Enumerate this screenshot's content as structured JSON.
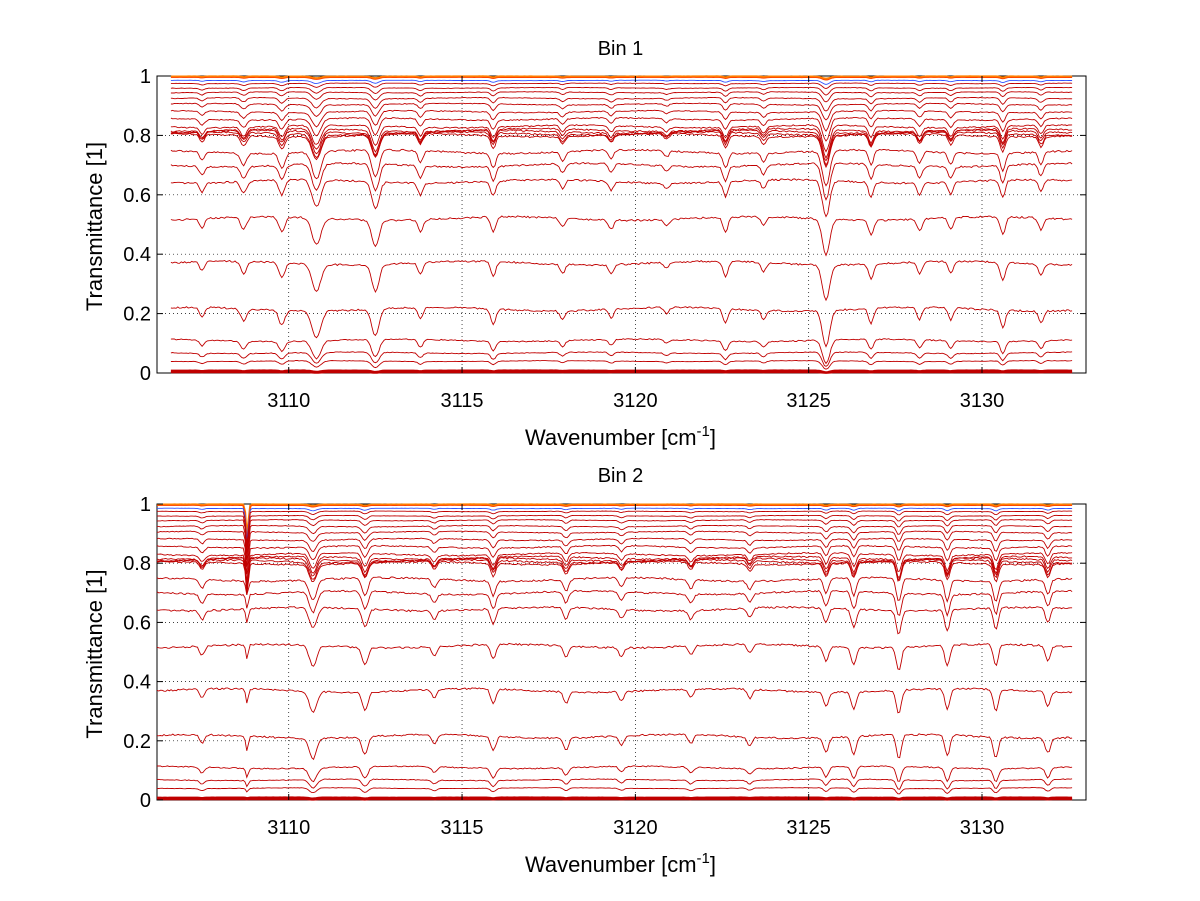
{
  "chart_data": [
    {
      "type": "line",
      "title": "Bin 1",
      "xlabel": "Wavenumber [cm",
      "xlabel_sup": "-1",
      "xlabel_end": "]",
      "ylabel": "Transmittance [1]",
      "xlim": [
        3106.2,
        3133.0
      ],
      "ylim": [
        0,
        1
      ],
      "xticks": [
        3110,
        3115,
        3120,
        3125,
        3130
      ],
      "xtick_labels": [
        "3110",
        "3115",
        "3120",
        "3125",
        "3130"
      ],
      "yticks": [
        0,
        0.2,
        0.4,
        0.6,
        0.8,
        1
      ],
      "ytick_labels": [
        "0",
        "0.2",
        "0.4",
        "0.6",
        "0.8",
        "1"
      ],
      "grid": true,
      "line_color": "#c00000",
      "top_colors": [
        "#ff7f00",
        "#ff4000",
        "#3050ff"
      ],
      "series_baselines": [
        0.998,
        0.995,
        0.985,
        0.975,
        0.96,
        0.945,
        0.925,
        0.905,
        0.88,
        0.855,
        0.83,
        0.818,
        0.812,
        0.806,
        0.8,
        0.745,
        0.7,
        0.645,
        0.52,
        0.37,
        0.215,
        0.11,
        0.068,
        0.04,
        0.008,
        0.003
      ],
      "absorption_lines": [
        {
          "x": 3107.5,
          "depth": 0.03,
          "width": 0.1
        },
        {
          "x": 3108.7,
          "depth": 0.04,
          "width": 0.12
        },
        {
          "x": 3109.8,
          "depth": 0.05,
          "width": 0.12
        },
        {
          "x": 3110.8,
          "depth": 0.09,
          "width": 0.18
        },
        {
          "x": 3112.5,
          "depth": 0.09,
          "width": 0.15
        },
        {
          "x": 3113.8,
          "depth": 0.04,
          "width": 0.1
        },
        {
          "x": 3115.9,
          "depth": 0.05,
          "width": 0.1
        },
        {
          "x": 3117.9,
          "depth": 0.03,
          "width": 0.1
        },
        {
          "x": 3119.3,
          "depth": 0.03,
          "width": 0.1
        },
        {
          "x": 3120.9,
          "depth": 0.02,
          "width": 0.1
        },
        {
          "x": 3122.6,
          "depth": 0.05,
          "width": 0.1
        },
        {
          "x": 3123.7,
          "depth": 0.03,
          "width": 0.1
        },
        {
          "x": 3125.5,
          "depth": 0.12,
          "width": 0.15
        },
        {
          "x": 3126.8,
          "depth": 0.05,
          "width": 0.1
        },
        {
          "x": 3128.2,
          "depth": 0.04,
          "width": 0.1
        },
        {
          "x": 3129.1,
          "depth": 0.04,
          "width": 0.1
        },
        {
          "x": 3130.6,
          "depth": 0.06,
          "width": 0.1
        },
        {
          "x": 3131.7,
          "depth": 0.04,
          "width": 0.1
        }
      ],
      "x_start": 3106.6,
      "x_end": 3132.6
    },
    {
      "type": "line",
      "title": "Bin 2",
      "xlabel": "Wavenumber [cm",
      "xlabel_sup": "-1",
      "xlabel_end": "]",
      "ylabel": "Transmittance [1]",
      "xlim": [
        3106.2,
        3133.0
      ],
      "ylim": [
        0,
        1
      ],
      "xticks": [
        3110,
        3115,
        3120,
        3125,
        3130
      ],
      "xtick_labels": [
        "3110",
        "3115",
        "3120",
        "3125",
        "3130"
      ],
      "yticks": [
        0,
        0.2,
        0.4,
        0.6,
        0.8,
        1
      ],
      "ytick_labels": [
        "0",
        "0.2",
        "0.4",
        "0.6",
        "0.8",
        "1"
      ],
      "grid": true,
      "line_color": "#c00000",
      "top_colors": [
        "#ff7f00",
        "#ff4000",
        "#3050ff"
      ],
      "series_baselines": [
        0.998,
        0.995,
        0.985,
        0.975,
        0.96,
        0.945,
        0.925,
        0.905,
        0.88,
        0.855,
        0.83,
        0.818,
        0.812,
        0.806,
        0.8,
        0.745,
        0.7,
        0.645,
        0.52,
        0.37,
        0.215,
        0.11,
        0.068,
        0.04,
        0.008,
        0.003
      ],
      "absorption_lines": [
        {
          "x": 3107.5,
          "depth": 0.03,
          "width": 0.1
        },
        {
          "x": 3108.8,
          "depth": 0.05,
          "width": 0.05,
          "sharp_top": true
        },
        {
          "x": 3110.7,
          "depth": 0.07,
          "width": 0.15
        },
        {
          "x": 3112.2,
          "depth": 0.06,
          "width": 0.12
        },
        {
          "x": 3114.2,
          "depth": 0.03,
          "width": 0.1
        },
        {
          "x": 3115.9,
          "depth": 0.05,
          "width": 0.1
        },
        {
          "x": 3118.0,
          "depth": 0.04,
          "width": 0.1
        },
        {
          "x": 3119.6,
          "depth": 0.03,
          "width": 0.1
        },
        {
          "x": 3121.6,
          "depth": 0.03,
          "width": 0.1
        },
        {
          "x": 3123.3,
          "depth": 0.03,
          "width": 0.1
        },
        {
          "x": 3125.5,
          "depth": 0.05,
          "width": 0.1
        },
        {
          "x": 3126.3,
          "depth": 0.06,
          "width": 0.1
        },
        {
          "x": 3127.6,
          "depth": 0.08,
          "width": 0.1
        },
        {
          "x": 3129.0,
          "depth": 0.07,
          "width": 0.1
        },
        {
          "x": 3130.4,
          "depth": 0.07,
          "width": 0.1
        },
        {
          "x": 3131.9,
          "depth": 0.05,
          "width": 0.1
        }
      ],
      "x_start": 3106.2,
      "x_end": 3132.6
    }
  ]
}
